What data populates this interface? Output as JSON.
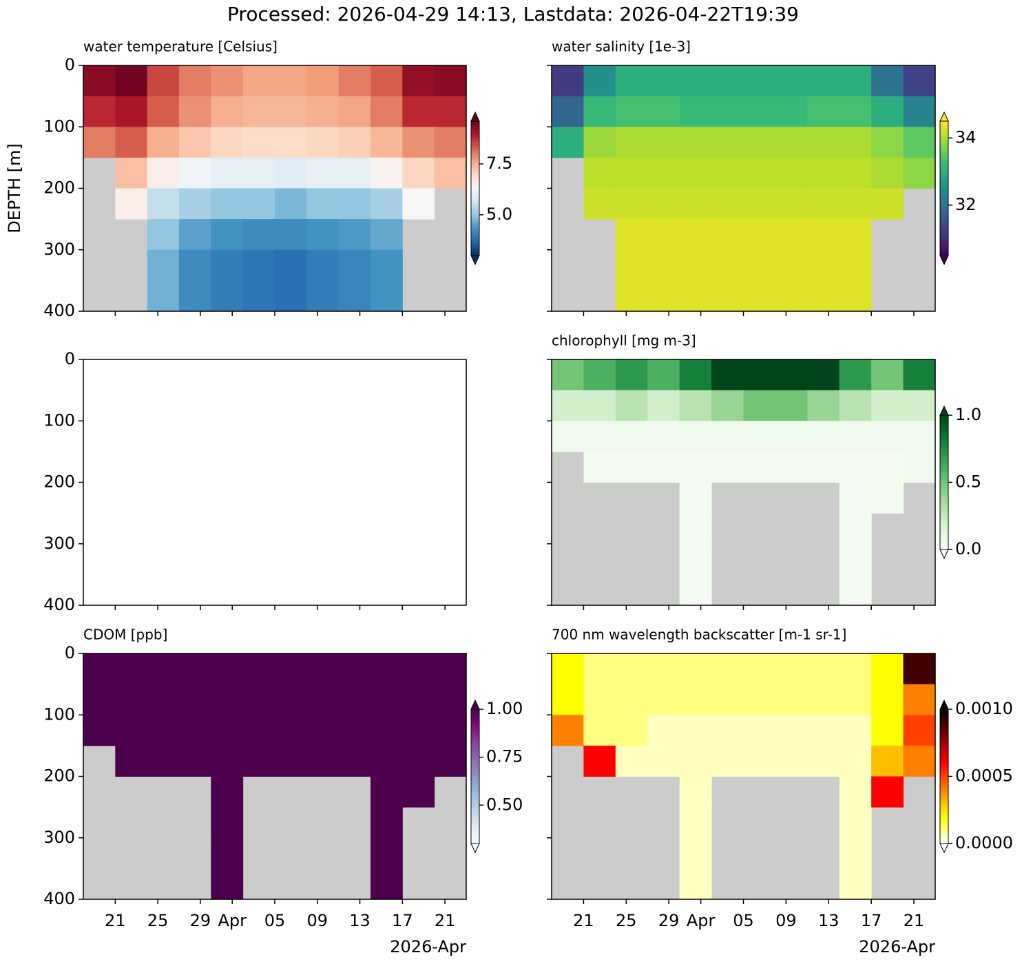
{
  "title": "Processed: 2026-04-29 14:13, Lastdata: 2026-04-22T19:39",
  "chart_data": [
    {
      "type": "heatmap",
      "title": "water temperature [Celsius]",
      "ylabel": "DEPTH [m]",
      "ylim": [
        400,
        0
      ],
      "yticks": [
        0,
        100,
        200,
        300,
        400
      ],
      "ytick_labels": true,
      "xlim": [
        "2026-03-18",
        "2026-04-23"
      ],
      "xticks": [
        "2026-03-21",
        "2026-03-25",
        "2026-03-29",
        "2026-04-01",
        "2026-04-05",
        "2026-04-09",
        "2026-04-13",
        "2026-04-17",
        "2026-04-21"
      ],
      "nodata_color": "#cccccc",
      "colormap": [
        "#053061",
        "#2166ac",
        "#4393c3",
        "#92c5de",
        "#d1e5f0",
        "#f7f7f7",
        "#fddbc7",
        "#f4a582",
        "#d6604d",
        "#b2182b",
        "#67001f"
      ],
      "clim": [
        3.0,
        9.6
      ],
      "cticks": [
        {
          "value": 5,
          "label": "5.0"
        },
        7.5
      ],
      "x_edges": [
        "2026-03-18",
        "2026-03-21",
        "2026-03-24",
        "2026-03-27",
        "2026-03-30",
        "2026-04-02",
        "2026-04-05",
        "2026-04-08",
        "2026-04-11",
        "2026-04-14",
        "2026-04-17",
        "2026-04-20",
        "2026-04-23"
      ],
      "depth_edges": [
        0,
        50,
        100,
        150,
        200,
        250,
        300,
        400
      ],
      "z": [
        [
          9.3,
          9.5,
          8.5,
          8.0,
          7.8,
          7.6,
          7.6,
          7.7,
          8.0,
          8.3,
          9.2,
          9.3
        ],
        [
          8.8,
          9.0,
          8.3,
          7.8,
          7.5,
          7.4,
          7.4,
          7.5,
          7.6,
          8.0,
          8.8,
          8.8
        ],
        [
          8.0,
          8.3,
          7.5,
          7.2,
          7.0,
          6.9,
          6.9,
          7.0,
          7.1,
          7.4,
          7.8,
          8.0
        ],
        [
          null,
          7.3,
          6.5,
          6.2,
          6.0,
          6.0,
          5.9,
          6.0,
          6.0,
          6.4,
          7.0,
          7.3
        ],
        [
          null,
          6.5,
          5.5,
          5.2,
          5.0,
          5.0,
          4.8,
          5.0,
          5.0,
          5.2,
          6.3,
          null
        ],
        [
          null,
          null,
          5.0,
          4.5,
          4.3,
          4.2,
          4.2,
          4.3,
          4.4,
          4.6,
          null,
          null
        ],
        [
          null,
          null,
          4.7,
          4.2,
          4.0,
          3.9,
          3.8,
          4.0,
          4.1,
          4.3,
          null,
          null
        ]
      ]
    },
    {
      "type": "heatmap",
      "title": "water salinity [1e-3]",
      "ylim": [
        400,
        0
      ],
      "yticks": [
        0,
        100,
        200,
        300,
        400
      ],
      "ytick_labels": false,
      "xlim": [
        "2026-03-18",
        "2026-04-23"
      ],
      "xticks": [
        "2026-03-21",
        "2026-03-25",
        "2026-03-29",
        "2026-04-01",
        "2026-04-05",
        "2026-04-09",
        "2026-04-13",
        "2026-04-17",
        "2026-04-21"
      ],
      "nodata_color": "#cccccc",
      "colormap": [
        "#440154",
        "#482878",
        "#3e4989",
        "#31688e",
        "#26828e",
        "#1f9e89",
        "#35b779",
        "#6ece58",
        "#b5de2b",
        "#fde725"
      ],
      "clim": [
        30.5,
        34.5
      ],
      "cticks": [
        32,
        34
      ],
      "x_edges": [
        "2026-03-18",
        "2026-03-21",
        "2026-03-24",
        "2026-03-27",
        "2026-03-30",
        "2026-04-02",
        "2026-04-05",
        "2026-04-08",
        "2026-04-11",
        "2026-04-14",
        "2026-04-17",
        "2026-04-20",
        "2026-04-23"
      ],
      "depth_edges": [
        0,
        50,
        100,
        150,
        200,
        250,
        300,
        400
      ],
      "z": [
        [
          31.2,
          32.5,
          33.0,
          33.0,
          33.0,
          33.0,
          33.0,
          33.0,
          33.0,
          33.0,
          32.0,
          31.3
        ],
        [
          31.8,
          33.2,
          33.3,
          33.3,
          33.2,
          33.2,
          33.2,
          33.2,
          33.3,
          33.3,
          33.0,
          32.3
        ],
        [
          33.0,
          33.9,
          34.0,
          34.0,
          34.0,
          34.0,
          34.0,
          34.0,
          34.0,
          34.0,
          33.8,
          33.5
        ],
        [
          null,
          34.1,
          34.1,
          34.1,
          34.1,
          34.1,
          34.1,
          34.1,
          34.1,
          34.1,
          34.0,
          33.8
        ],
        [
          null,
          34.2,
          34.2,
          34.2,
          34.2,
          34.2,
          34.2,
          34.2,
          34.2,
          34.2,
          34.2,
          null
        ],
        [
          null,
          null,
          34.3,
          34.3,
          34.3,
          34.3,
          34.3,
          34.3,
          34.3,
          34.3,
          null,
          null
        ],
        [
          null,
          null,
          34.3,
          34.3,
          34.3,
          34.3,
          34.3,
          34.3,
          34.3,
          34.3,
          null,
          null
        ]
      ]
    },
    {
      "type": "heatmap",
      "ylim": [
        400,
        0
      ],
      "yticks": [
        0,
        100,
        200,
        300,
        400
      ],
      "ytick_labels": true,
      "xlim": [
        "2026-03-18",
        "2026-04-23"
      ],
      "xticks": [
        "2026-03-21",
        "2026-03-25",
        "2026-03-29",
        "2026-04-01",
        "2026-04-05",
        "2026-04-09",
        "2026-04-13",
        "2026-04-17",
        "2026-04-21"
      ]
    },
    {
      "type": "heatmap",
      "title": "chlorophyll [mg m-3]",
      "ylim": [
        400,
        0
      ],
      "yticks": [
        0,
        100,
        200,
        300,
        400
      ],
      "ytick_labels": false,
      "xlim": [
        "2026-03-18",
        "2026-04-23"
      ],
      "xticks": [
        "2026-03-21",
        "2026-03-25",
        "2026-03-29",
        "2026-04-01",
        "2026-04-05",
        "2026-04-09",
        "2026-04-13",
        "2026-04-17",
        "2026-04-21"
      ],
      "nodata_color": "#cccccc",
      "colormap": [
        "#f7fcf5",
        "#e5f5e0",
        "#c7e9c0",
        "#a1d99b",
        "#74c476",
        "#41ab5d",
        "#238b45",
        "#006d2c",
        "#00441b"
      ],
      "clim": [
        0,
        1
      ],
      "cticks": [
        {
          "value": 0,
          "label": "0.0"
        },
        0.5,
        {
          "value": 1,
          "label": "1.0"
        }
      ],
      "x_edges": [
        "2026-03-18",
        "2026-03-21",
        "2026-03-24",
        "2026-03-27",
        "2026-03-30",
        "2026-04-02",
        "2026-04-05",
        "2026-04-08",
        "2026-04-11",
        "2026-04-14",
        "2026-04-17",
        "2026-04-20",
        "2026-04-23"
      ],
      "depth_edges": [
        0,
        50,
        100,
        150,
        200,
        250,
        300,
        400
      ],
      "z": [
        [
          0.5,
          0.6,
          0.7,
          0.6,
          0.8,
          1.0,
          1.0,
          1.0,
          1.0,
          0.7,
          0.5,
          0.8
        ],
        [
          0.2,
          0.2,
          0.3,
          0.2,
          0.3,
          0.4,
          0.5,
          0.5,
          0.4,
          0.3,
          0.2,
          0.2
        ],
        [
          0.05,
          0.05,
          0.05,
          0.05,
          0.05,
          0.05,
          0.05,
          0.05,
          0.05,
          0.05,
          0.05,
          0.05
        ],
        [
          null,
          0.03,
          0.03,
          0.03,
          0.03,
          0.03,
          0.03,
          0.03,
          0.03,
          0.03,
          0.03,
          0.05
        ],
        [
          null,
          null,
          null,
          null,
          0.02,
          null,
          null,
          null,
          null,
          0.02,
          0.03,
          null
        ],
        [
          null,
          null,
          null,
          null,
          0.02,
          null,
          null,
          null,
          null,
          0.02,
          null,
          null
        ],
        [
          null,
          null,
          null,
          null,
          0.02,
          null,
          null,
          null,
          null,
          0.02,
          null,
          null
        ]
      ]
    },
    {
      "type": "heatmap",
      "title": "CDOM [ppb]",
      "ylim": [
        400,
        0
      ],
      "yticks": [
        0,
        100,
        200,
        300,
        400
      ],
      "ytick_labels": true,
      "xlim": [
        "2026-03-18",
        "2026-04-23"
      ],
      "xticks": [
        {
          "value": "2026-03-21",
          "label": "21"
        },
        {
          "value": "2026-03-25",
          "label": "25"
        },
        {
          "value": "2026-03-29",
          "label": "29"
        },
        {
          "value": "2026-04-01",
          "label": "Apr"
        },
        {
          "value": "2026-04-05",
          "label": "05"
        },
        {
          "value": "2026-04-09",
          "label": "09"
        },
        {
          "value": "2026-04-13",
          "label": "13"
        },
        {
          "value": "2026-04-17",
          "label": "17"
        },
        {
          "value": "2026-04-21",
          "label": "21"
        }
      ],
      "x_offset_label": "2026-Apr",
      "nodata_color": "#cccccc",
      "colormap": [
        "#f7fcfd",
        "#e0ecf4",
        "#bfd3e6",
        "#9ebcda",
        "#8c96c6",
        "#8c6bb1",
        "#88419d",
        "#810f7c",
        "#4d004b"
      ],
      "clim": [
        0.3,
        1.0
      ],
      "cticks": [
        {
          "value": 0.5,
          "label": "0.50"
        },
        0.75,
        {
          "value": 1,
          "label": "1.00"
        }
      ],
      "x_edges": [
        "2026-03-18",
        "2026-03-21",
        "2026-03-24",
        "2026-03-27",
        "2026-03-30",
        "2026-04-02",
        "2026-04-05",
        "2026-04-08",
        "2026-04-11",
        "2026-04-14",
        "2026-04-17",
        "2026-04-20",
        "2026-04-23"
      ],
      "depth_edges": [
        0,
        50,
        100,
        150,
        200,
        250,
        300,
        400
      ],
      "z": [
        [
          1.1,
          1.1,
          1.1,
          1.1,
          1.1,
          1.1,
          1.1,
          1.1,
          1.1,
          1.1,
          1.1,
          1.1
        ],
        [
          1.1,
          1.1,
          1.1,
          1.1,
          1.1,
          1.1,
          1.1,
          1.1,
          1.1,
          1.1,
          1.1,
          1.1
        ],
        [
          1.1,
          1.1,
          1.1,
          1.1,
          1.1,
          1.1,
          1.1,
          1.1,
          1.1,
          1.1,
          1.1,
          1.1
        ],
        [
          null,
          1.1,
          1.1,
          1.1,
          1.1,
          1.1,
          1.1,
          1.1,
          1.1,
          1.1,
          1.1,
          1.1
        ],
        [
          null,
          null,
          null,
          null,
          1.1,
          null,
          null,
          null,
          null,
          1.1,
          1.1,
          null
        ],
        [
          null,
          null,
          null,
          null,
          1.1,
          null,
          null,
          null,
          null,
          1.1,
          null,
          null
        ],
        [
          null,
          null,
          null,
          null,
          1.1,
          null,
          null,
          null,
          null,
          1.1,
          null,
          null
        ]
      ]
    },
    {
      "type": "heatmap",
      "title": "700 nm wavelength backscatter [m-1 sr-1]",
      "ylim": [
        400,
        0
      ],
      "yticks": [
        0,
        100,
        200,
        300,
        400
      ],
      "ytick_labels": false,
      "xlim": [
        "2026-03-18",
        "2026-04-23"
      ],
      "xticks": [
        {
          "value": "2026-03-21",
          "label": "21"
        },
        {
          "value": "2026-03-25",
          "label": "25"
        },
        {
          "value": "2026-03-29",
          "label": "29"
        },
        {
          "value": "2026-04-01",
          "label": "Apr"
        },
        {
          "value": "2026-04-05",
          "label": "05"
        },
        {
          "value": "2026-04-09",
          "label": "09"
        },
        {
          "value": "2026-04-13",
          "label": "13"
        },
        {
          "value": "2026-04-17",
          "label": "17"
        },
        {
          "value": "2026-04-21",
          "label": "21"
        }
      ],
      "x_offset_label": "2026-Apr",
      "nodata_color": "#cccccc",
      "colormap": [
        "#ffffff",
        "#ffff80",
        "#ffff00",
        "#ffbf00",
        "#ff8000",
        "#ff4000",
        "#ff0000",
        "#bf0000",
        "#800000",
        "#400000",
        "#000000"
      ],
      "clim": [
        0,
        0.001
      ],
      "cticks": [
        {
          "value": 0,
          "label": "0.0000"
        },
        0.0005,
        {
          "value": 0.001,
          "label": "0.0010"
        }
      ],
      "x_edges": [
        "2026-03-18",
        "2026-03-21",
        "2026-03-24",
        "2026-03-27",
        "2026-03-30",
        "2026-04-02",
        "2026-04-05",
        "2026-04-08",
        "2026-04-11",
        "2026-04-14",
        "2026-04-17",
        "2026-04-20",
        "2026-04-23"
      ],
      "depth_edges": [
        0,
        50,
        100,
        150,
        200,
        250,
        300,
        400
      ],
      "z": [
        [
          0.0002,
          0.0001,
          0.0001,
          0.0001,
          0.0001,
          0.0001,
          0.0001,
          0.0001,
          0.0001,
          0.0001,
          0.0002,
          0.0009
        ],
        [
          0.0002,
          0.0001,
          0.0001,
          0.0001,
          0.0001,
          0.0001,
          0.0001,
          0.0001,
          0.0001,
          0.0001,
          0.0002,
          0.0004
        ],
        [
          0.0004,
          0.0001,
          0.0001,
          5e-05,
          5e-05,
          5e-05,
          5e-05,
          5e-05,
          5e-05,
          5e-05,
          0.0002,
          0.0005
        ],
        [
          null,
          0.0006,
          5e-05,
          5e-05,
          5e-05,
          5e-05,
          5e-05,
          5e-05,
          5e-05,
          5e-05,
          0.0003,
          0.0004
        ],
        [
          null,
          null,
          null,
          null,
          5e-05,
          null,
          null,
          null,
          null,
          5e-05,
          0.0006,
          null
        ],
        [
          null,
          null,
          null,
          null,
          5e-05,
          null,
          null,
          null,
          null,
          5e-05,
          null,
          null
        ],
        [
          null,
          null,
          null,
          null,
          5e-05,
          null,
          null,
          null,
          null,
          5e-05,
          null,
          null
        ]
      ]
    }
  ]
}
